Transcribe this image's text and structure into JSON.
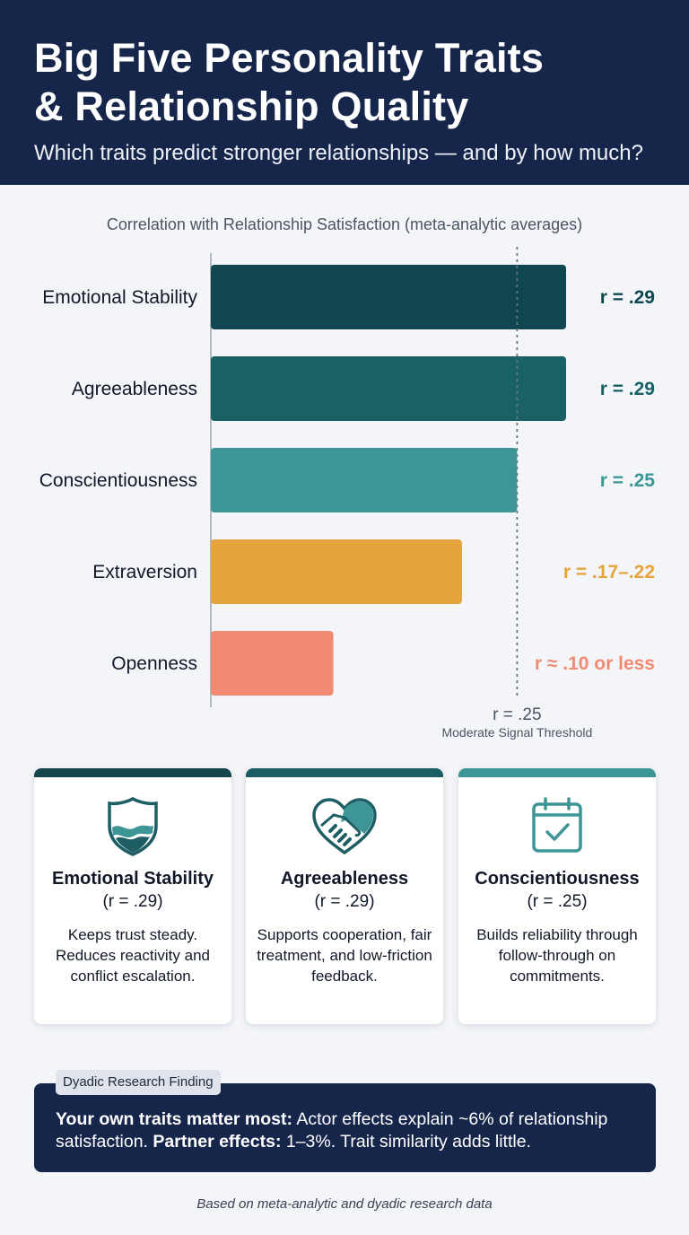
{
  "header": {
    "title_line1": "Big Five Personality Traits",
    "title_line2": "& Relationship Quality",
    "subtitle": "Which traits predict stronger relationships — and by how much?"
  },
  "chart_data": {
    "type": "bar",
    "orientation": "horizontal",
    "title": "Correlation with Relationship Satisfaction (meta-analytic averages)",
    "categories": [
      "Emotional Stability",
      "Agreeableness",
      "Conscientiousness",
      "Extraversion",
      "Openness"
    ],
    "values": [
      0.29,
      0.29,
      0.25,
      0.205,
      0.1
    ],
    "value_labels": [
      "r = .29",
      "r = .29",
      "r = .25",
      "r = .17–.22",
      "r ≈ .10 or less"
    ],
    "colors": [
      "#0f4650",
      "#1a6166",
      "#3e9596",
      "#e5a33c",
      "#f08a72"
    ],
    "xlim": [
      0,
      0.29
    ],
    "threshold": {
      "value": 0.25,
      "label": "r = .25",
      "sublabel": "Moderate Signal Threshold"
    },
    "grid": false,
    "legend": "none"
  },
  "cards": [
    {
      "title": "Emotional Stability",
      "r": "(r = .29)",
      "desc": "Keeps trust steady. Reduces reactivity and conflict escalation.",
      "icon": "shield-icon",
      "color": "#16454e"
    },
    {
      "title": "Agreeableness",
      "r": "(r = .29)",
      "desc": "Supports cooperation, fair treatment, and low-friction feedback.",
      "icon": "heart-handshake-icon",
      "color": "#1d5e64"
    },
    {
      "title": "Conscientiousness",
      "r": "(r = .25)",
      "desc": "Builds reliability through follow-through on commitments.",
      "icon": "calendar-check-icon",
      "color": "#3e9596"
    }
  ],
  "finding": {
    "tag": "Dyadic Research Finding",
    "bold1": "Your own traits matter most:",
    "text1": " Actor effects explain ~6% of relationship satisfaction. ",
    "bold2": "Partner effects:",
    "text2": " 1–3%. Trait similarity adds little."
  },
  "footnote": "Based on meta-analytic and dyadic research data"
}
